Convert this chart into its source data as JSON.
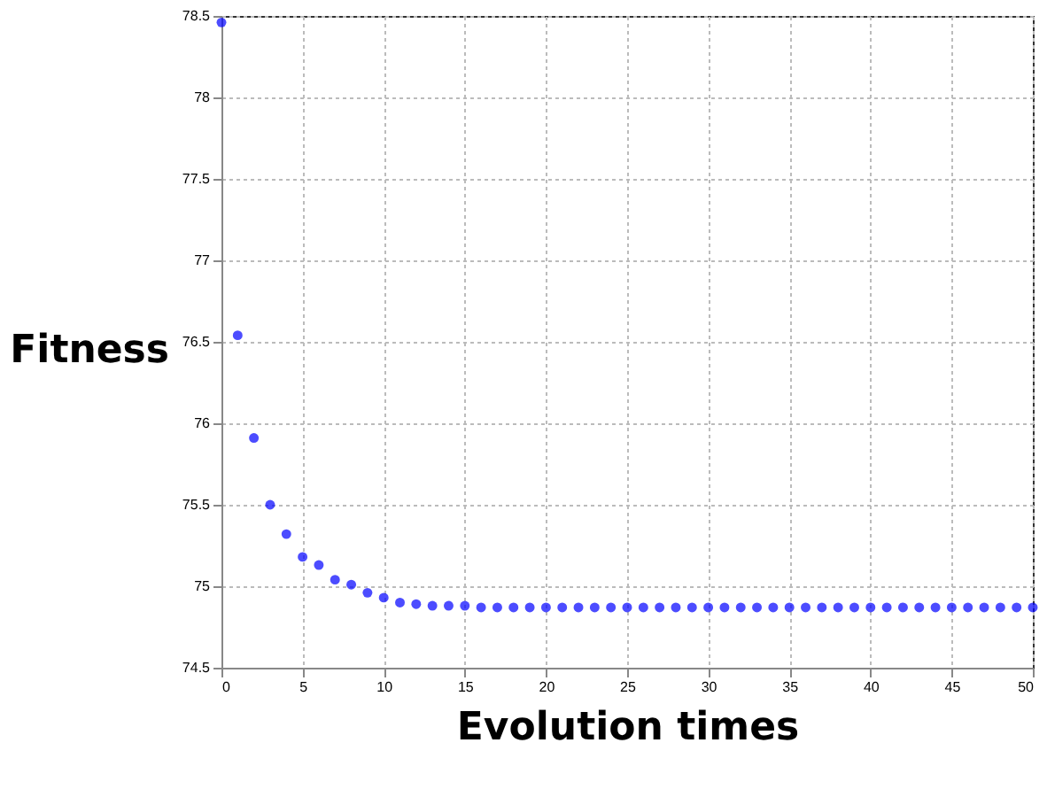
{
  "chart_data": {
    "type": "scatter",
    "xlabel": "Evolution times",
    "ylabel": "Fitness",
    "x": [
      0,
      1,
      2,
      3,
      4,
      5,
      6,
      7,
      8,
      9,
      10,
      11,
      12,
      13,
      14,
      15,
      16,
      17,
      18,
      19,
      20,
      21,
      22,
      23,
      24,
      25,
      26,
      27,
      28,
      29,
      30,
      31,
      32,
      33,
      34,
      35,
      36,
      37,
      38,
      39,
      40,
      41,
      42,
      43,
      44,
      45,
      46,
      47,
      48,
      49,
      50
    ],
    "series": [
      {
        "color": "#0000ff",
        "values": [
          78.46,
          76.54,
          75.91,
          75.5,
          75.32,
          75.18,
          75.13,
          75.04,
          75.01,
          74.96,
          74.93,
          74.9,
          74.89,
          74.88,
          74.88,
          74.88,
          74.87,
          74.87,
          74.87,
          74.87,
          74.87,
          74.87,
          74.87,
          74.87,
          74.87,
          74.87,
          74.87,
          74.87,
          74.87,
          74.87,
          74.87,
          74.87,
          74.87,
          74.87,
          74.87,
          74.87,
          74.87,
          74.87,
          74.87,
          74.87,
          74.87,
          74.87,
          74.87,
          74.87,
          74.87,
          74.87,
          74.87,
          74.87,
          74.87,
          74.87,
          74.87
        ]
      }
    ],
    "xlim": [
      0,
      50
    ],
    "xticks": [
      0,
      5,
      10,
      15,
      20,
      25,
      30,
      35,
      40,
      45,
      50
    ],
    "ylim": [
      74.5,
      78.5
    ],
    "yticks": [
      74.5,
      75,
      75.5,
      76,
      76.5,
      77,
      77.5,
      78,
      78.5
    ],
    "grid": true,
    "marker": "circle",
    "legend": false
  }
}
